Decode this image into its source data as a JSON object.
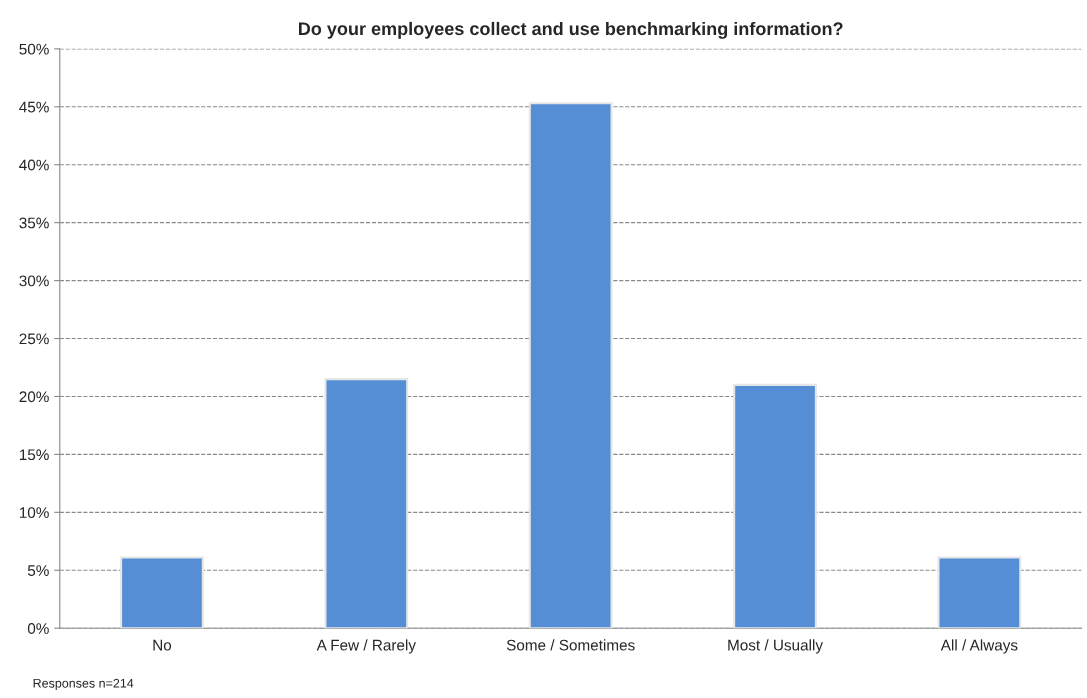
{
  "chart_data": {
    "type": "bar",
    "title": "Do your employees collect and use benchmarking information?",
    "categories": [
      "No",
      "A Few / Rarely",
      "Some / Sometimes",
      "Most / Usually",
      "All / Always"
    ],
    "values": [
      6.1,
      21.5,
      45.3,
      21.0,
      6.1
    ],
    "color": "#558ed5",
    "ylim": [
      0,
      50
    ],
    "yticks": [
      {
        "value": 0,
        "label": "0%"
      },
      {
        "value": 5,
        "label": "5%"
      },
      {
        "value": 10,
        "label": "10%"
      },
      {
        "value": 15,
        "label": "15%"
      },
      {
        "value": 20,
        "label": "20%"
      },
      {
        "value": 25,
        "label": "25%"
      },
      {
        "value": 30,
        "label": "30%"
      },
      {
        "value": 35,
        "label": "35%"
      },
      {
        "value": 40,
        "label": "40%"
      },
      {
        "value": 45,
        "label": "45%"
      },
      {
        "value": 50,
        "label": "50%"
      }
    ],
    "grid": "y",
    "annotations": [
      "Responses n=214"
    ]
  }
}
